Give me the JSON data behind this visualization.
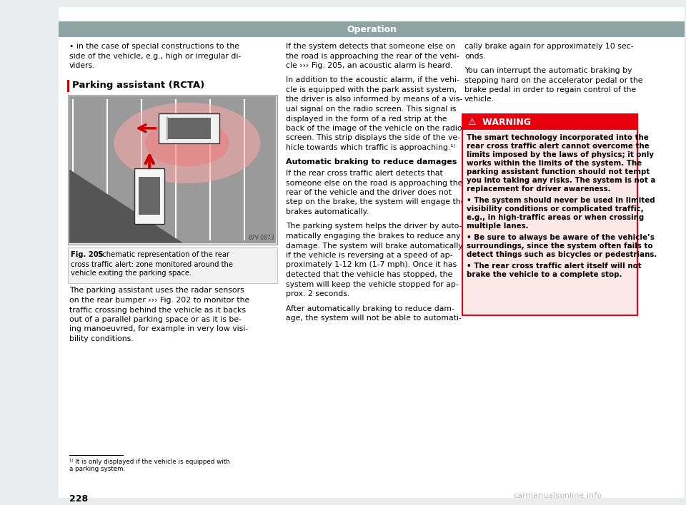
{
  "page_bg": "#eaecee",
  "content_bg": "#ffffff",
  "header_bar_color": "#8fa5a5",
  "header_text": "Operation",
  "header_text_color": "#ffffff",
  "warning_header_bg": "#e8000d",
  "warning_header_text": "⚠  WARNING",
  "warning_body_bg": "#fde8e8",
  "warning_border_color": "#e8000d",
  "section_bar_color": "#cc0000",
  "page_number": "228",
  "watermark": "carmanualsonline.info",
  "col1_bullet_line1": "• in the case of special constructions to the",
  "col1_bullet_line2": "side of the vehicle, e.g., high or irregular di-",
  "col1_bullet_line3": "viders.",
  "parking_section_title": "Parking assistant (RCTA)",
  "fig_caption_line1_bold": "Fig. 205",
  "fig_caption_line1_rest": "  Schematic representation of the rear",
  "fig_caption_line2": "cross traffic alert: zone monitored around the",
  "fig_caption_line3": "vehicle exiting the parking space.",
  "col1_para_lines": [
    "The parking assistant uses the radar sensors",
    "on the rear bumper ››› Fig. 202 to monitor the",
    "traffic crossing behind the vehicle as it backs",
    "out of a parallel parking space or as it is be-",
    "ing manoeuvred, for example in very low visi-",
    "bility conditions."
  ],
  "col2_para1_lines": [
    "If the system detects that someone else on",
    "the road is approaching the rear of the vehi-",
    "cle ››› Fig. 205, an acoustic alarm is heard."
  ],
  "col2_para2_lines": [
    "In addition to the acoustic alarm, if the vehi-",
    "cle is equipped with the park assist system,",
    "the driver is also informed by means of a vis-",
    "ual signal on the radio screen. This signal is",
    "displayed in the form of a red strip at the",
    "back of the image of the vehicle on the radio",
    "screen. This strip displays the side of the ve-",
    "hicle towards which traffic is approaching.¹⁾"
  ],
  "col2_heading": "Automatic braking to reduce damages",
  "col2_para3_lines": [
    "If the rear cross traffic alert detects that",
    "someone else on the road is approaching the",
    "rear of the vehicle and the driver does not",
    "step on the brake, the system will engage the",
    "brakes automatically."
  ],
  "col2_para4_lines": [
    "The parking system helps the driver by auto-",
    "matically engaging the brakes to reduce any",
    "damage. The system will brake automatically",
    "if the vehicle is reversing at a speed of ap-",
    "proximately 1-12 km (1-7 mph). Once it has",
    "detected that the vehicle has stopped, the",
    "system will keep the vehicle stopped for ap-",
    "prox. 2 seconds."
  ],
  "col2_para5_lines": [
    "After automatically braking to reduce dam-",
    "age, the system will not be able to automati-"
  ],
  "col3_para1_lines": [
    "cally brake again for approximately 10 sec-",
    "onds."
  ],
  "col3_para2_lines": [
    "You can interrupt the automatic braking by",
    "stepping hard on the accelerator pedal or the",
    "brake pedal in order to regain control of the",
    "vehicle."
  ],
  "warning_main_lines": [
    "The smart technology incorporated into the",
    "rear cross traffic alert cannot overcome the",
    "limits imposed by the laws of physics; it only",
    "works within the limits of the system. The",
    "parking assistant function should not tempt",
    "you into taking any risks. The system is not a",
    "replacement for driver awareness."
  ],
  "warning_bullet1_lines": [
    "• The system should never be used in limited",
    "visibility conditions or complicated traffic,",
    "e.g., in high-traffic areas or when crossing",
    "multiple lanes."
  ],
  "warning_bullet2_lines": [
    "• Be sure to always be aware of the vehicle’s",
    "surroundings, since the system often fails to",
    "detect things such as bicycles or pedestrians."
  ],
  "warning_bullet3_lines": [
    "• The rear cross traffic alert itself will not",
    "brake the vehicle to a complete stop."
  ],
  "footnote_lines": [
    "¹⁾ It is only displayed if the vehicle is equipped with",
    "a parking system."
  ],
  "fig_code": "87V·0873"
}
